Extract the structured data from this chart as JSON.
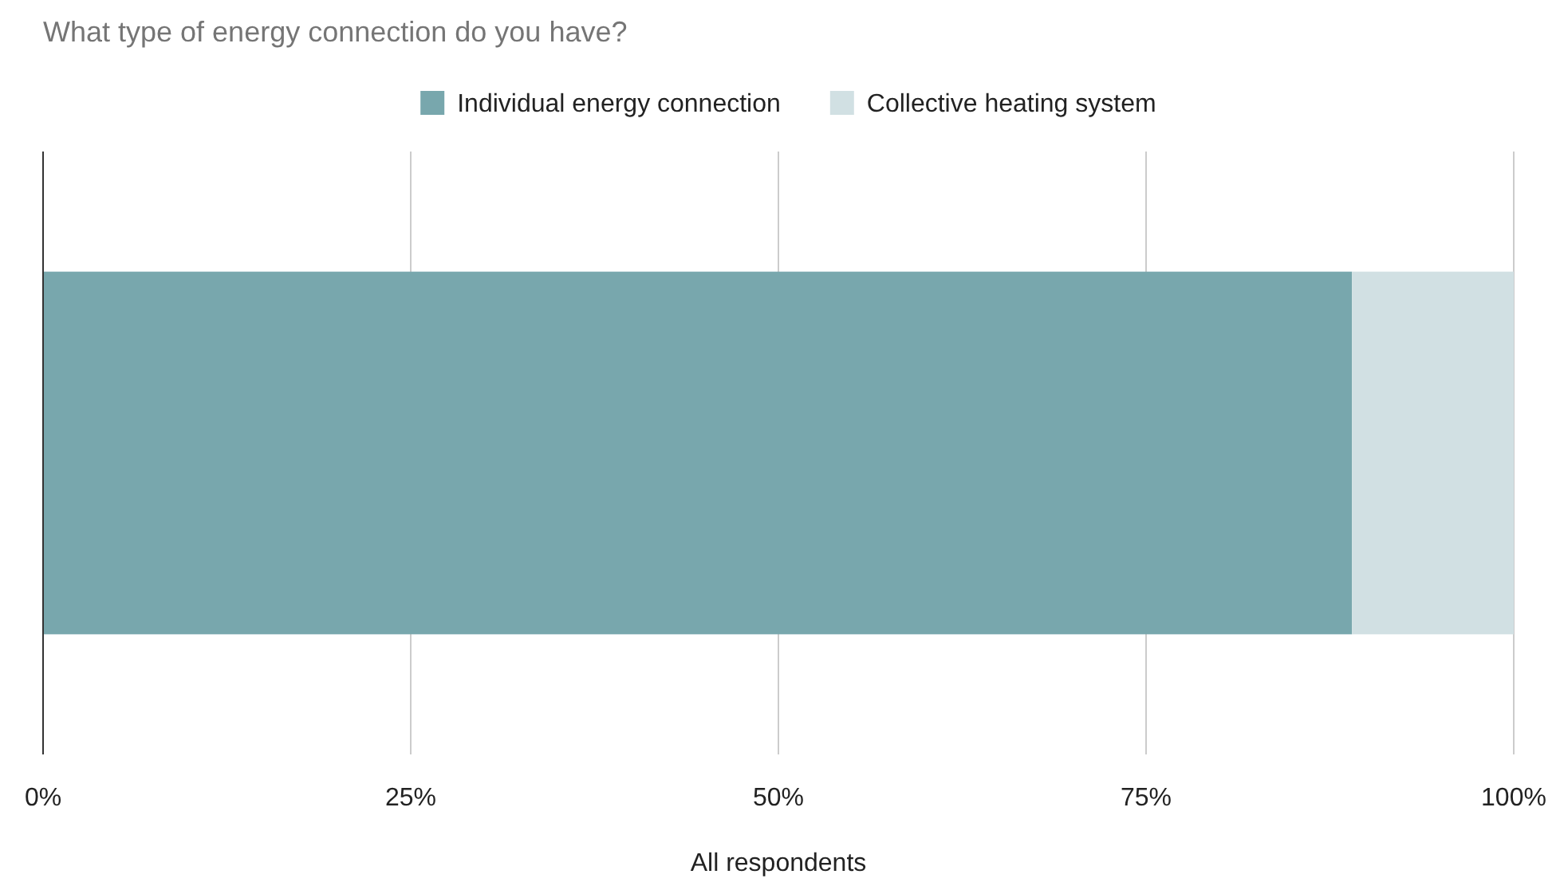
{
  "chart_data": {
    "type": "bar",
    "title": "What type of energy connection do you have?",
    "orientation": "horizontal",
    "stacked": true,
    "categories": [
      null
    ],
    "series": [
      {
        "name": "Individual energy connection",
        "color": "#78a7ad",
        "values": [
          89
        ]
      },
      {
        "name": "Collective heating system",
        "color": "#d1e0e3",
        "values": [
          11
        ]
      }
    ],
    "xlim": [
      0,
      100
    ],
    "xticks": [
      {
        "value": 0,
        "label": "0%"
      },
      {
        "value": 25,
        "label": "25%"
      },
      {
        "value": 50,
        "label": "50%"
      },
      {
        "value": 75,
        "label": "75%"
      },
      {
        "value": 100,
        "label": "100%"
      }
    ],
    "xlabel": "All respondents",
    "grid": "x",
    "legend": "top"
  }
}
